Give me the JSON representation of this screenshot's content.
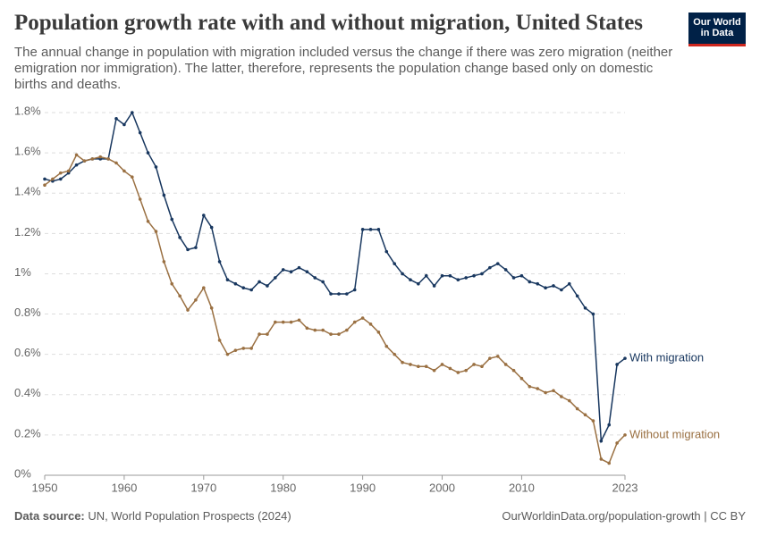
{
  "chart_data": {
    "type": "line",
    "title": "Population growth rate with and without migration, United States",
    "subtitle": "The annual change in population with migration included versus the change if there was zero migration (neither emigration nor immigration). The latter, therefore, represents the population change based only on domestic births and deaths.",
    "logo": [
      "Our World",
      "in Data"
    ],
    "source_label": "Data source:",
    "source": "UN, World Population Prospects (2024)",
    "url": "OurWorldinData.org/population-growth | CC BY",
    "x": [
      1950,
      1951,
      1952,
      1953,
      1954,
      1955,
      1956,
      1957,
      1958,
      1959,
      1960,
      1961,
      1962,
      1963,
      1964,
      1965,
      1966,
      1967,
      1968,
      1969,
      1970,
      1971,
      1972,
      1973,
      1974,
      1975,
      1976,
      1977,
      1978,
      1979,
      1980,
      1981,
      1982,
      1983,
      1984,
      1985,
      1986,
      1987,
      1988,
      1989,
      1990,
      1991,
      1992,
      1993,
      1994,
      1995,
      1996,
      1997,
      1998,
      1999,
      2000,
      2001,
      2002,
      2003,
      2004,
      2005,
      2006,
      2007,
      2008,
      2009,
      2010,
      2011,
      2012,
      2013,
      2014,
      2015,
      2016,
      2017,
      2018,
      2019,
      2020,
      2021,
      2022,
      2023
    ],
    "series": [
      {
        "name": "With migration",
        "color": "#18375f",
        "values": [
          1.47,
          1.46,
          1.47,
          1.5,
          1.54,
          1.56,
          1.57,
          1.57,
          1.57,
          1.77,
          1.74,
          1.8,
          1.7,
          1.6,
          1.53,
          1.39,
          1.27,
          1.18,
          1.12,
          1.13,
          1.29,
          1.23,
          1.06,
          0.97,
          0.95,
          0.93,
          0.92,
          0.96,
          0.94,
          0.98,
          1.02,
          1.01,
          1.03,
          1.01,
          0.98,
          0.96,
          0.9,
          0.9,
          0.9,
          0.92,
          1.22,
          1.22,
          1.22,
          1.11,
          1.05,
          1.0,
          0.97,
          0.95,
          0.99,
          0.94,
          0.99,
          0.99,
          0.97,
          0.98,
          0.99,
          1.0,
          1.03,
          1.05,
          1.02,
          0.98,
          0.99,
          0.96,
          0.95,
          0.93,
          0.94,
          0.92,
          0.95,
          0.89,
          0.83,
          0.8,
          0.17,
          0.25,
          0.55,
          0.58
        ]
      },
      {
        "name": "Without migration",
        "color": "#9a7042",
        "values": [
          1.44,
          1.47,
          1.5,
          1.51,
          1.59,
          1.56,
          1.57,
          1.58,
          1.57,
          1.55,
          1.51,
          1.48,
          1.37,
          1.26,
          1.21,
          1.06,
          0.95,
          0.89,
          0.82,
          0.87,
          0.93,
          0.83,
          0.67,
          0.6,
          0.62,
          0.63,
          0.63,
          0.7,
          0.7,
          0.76,
          0.76,
          0.76,
          0.77,
          0.73,
          0.72,
          0.72,
          0.7,
          0.7,
          0.72,
          0.76,
          0.78,
          0.75,
          0.71,
          0.64,
          0.6,
          0.56,
          0.55,
          0.54,
          0.54,
          0.52,
          0.55,
          0.53,
          0.51,
          0.52,
          0.55,
          0.54,
          0.58,
          0.59,
          0.55,
          0.52,
          0.48,
          0.44,
          0.43,
          0.41,
          0.42,
          0.39,
          0.37,
          0.33,
          0.3,
          0.27,
          0.08,
          0.06,
          0.16,
          0.2
        ]
      }
    ],
    "xlim": [
      1950,
      2023
    ],
    "xticks": [
      1950,
      1960,
      1970,
      1980,
      1990,
      2000,
      2010,
      2023
    ],
    "ylim": [
      0,
      1.8
    ],
    "yticks": [
      {
        "value": 0,
        "label": "0%"
      },
      {
        "value": 0.2,
        "label": "0.2%"
      },
      {
        "value": 0.4,
        "label": "0.4%"
      },
      {
        "value": 0.6,
        "label": "0.6%"
      },
      {
        "value": 0.8,
        "label": "0.8%"
      },
      {
        "value": 1,
        "label": "1%"
      },
      {
        "value": 1.2,
        "label": "1.2%"
      },
      {
        "value": 1.4,
        "label": "1.4%"
      },
      {
        "value": 1.6,
        "label": "1.6%"
      },
      {
        "value": 1.8,
        "label": "1.8%"
      }
    ],
    "grid": true
  }
}
